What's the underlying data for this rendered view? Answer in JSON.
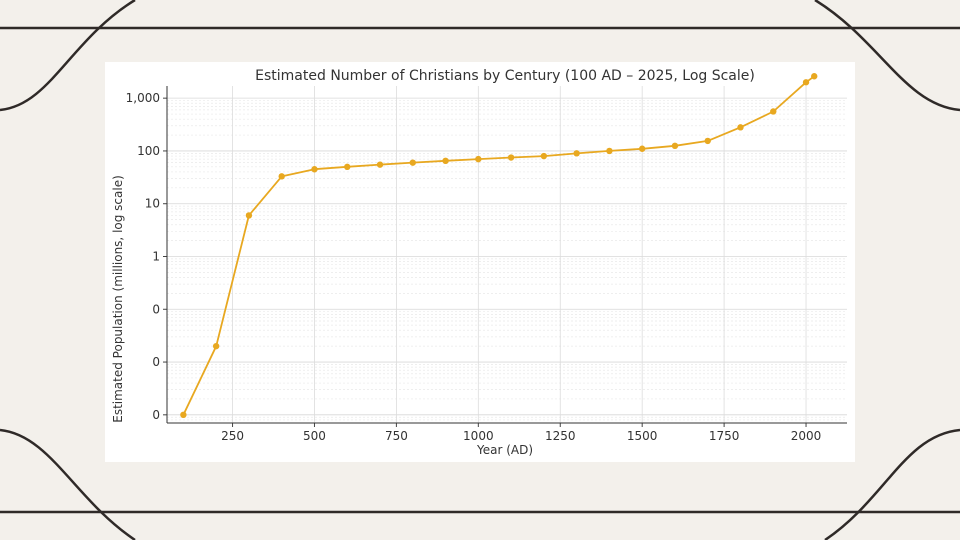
{
  "chart_data": {
    "type": "line",
    "title": "Estimated Number of Christians by Century (100 AD – 2025, Log Scale)",
    "xlabel": "Year (AD)",
    "ylabel": "Estimated Population (millions, log scale)",
    "xlim": [
      50,
      2125
    ],
    "ylim": [
      0.0007,
      1700
    ],
    "yscale": "log",
    "grid": true,
    "xticks": [
      250,
      500,
      750,
      1000,
      1250,
      1500,
      1750,
      2000
    ],
    "yticks": [
      {
        "value": 0.001,
        "label": "0"
      },
      {
        "value": 0.01,
        "label": "0"
      },
      {
        "value": 0.1,
        "label": "0"
      },
      {
        "value": 1,
        "label": "1"
      },
      {
        "value": 10,
        "label": "10"
      },
      {
        "value": 100,
        "label": "100"
      },
      {
        "value": 1000,
        "label": "1,000"
      }
    ],
    "color": "#e8a820",
    "series": [
      {
        "x": [
          100,
          200,
          300,
          400,
          500,
          600,
          700,
          800,
          900,
          1000,
          1100,
          1200,
          1300,
          1400,
          1500,
          1600,
          1700,
          1800,
          1900,
          2000,
          2025
        ],
        "values": [
          0.001,
          0.02,
          6,
          33,
          45,
          50,
          55,
          60,
          65,
          70,
          75,
          80,
          90,
          100,
          110,
          125,
          155,
          280,
          560,
          2000,
          2600
        ]
      }
    ]
  }
}
